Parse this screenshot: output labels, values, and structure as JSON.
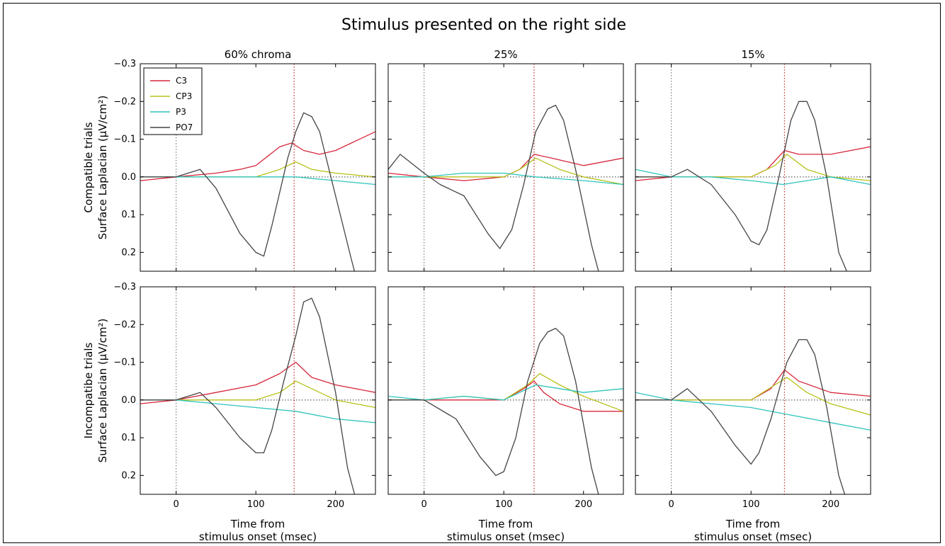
{
  "figure": {
    "title": "Stimulus presented on the right side",
    "column_titles": [
      "60% chroma",
      "25%",
      "15%"
    ],
    "row_ylabels": [
      [
        "Compatible trials",
        "Surface Laplacian (μV/cm²)"
      ],
      [
        "Incompatibe trials",
        "Surface Laplacian (μV/cm²)"
      ]
    ],
    "xlabel": [
      "Time from",
      "stimulus onset (msec)"
    ]
  },
  "chart_data": {
    "type": "line",
    "layout": "2 rows x 3 columns small multiples",
    "x_range": [
      -45,
      250
    ],
    "x_ticks": [
      0,
      100,
      200
    ],
    "y_range": [
      0.25,
      -0.3
    ],
    "y_inverted": true,
    "y_ticks": [
      -0.3,
      -0.2,
      -0.1,
      0.0,
      0.1,
      0.2
    ],
    "y_tick_labels": [
      "−0.3",
      "−0.2",
      "−0.1",
      "0.0",
      "0.1",
      "0.2"
    ],
    "legend": {
      "placement": "upper-left of first panel",
      "entries": [
        "C3",
        "CP3",
        "P3",
        "PO7"
      ]
    },
    "colors": {
      "C3": "#d6283c",
      "CP3": "#b8c21a",
      "P3": "#2ec4bc",
      "PO7": "#444444",
      "onset_line": "#666666",
      "peak_line": "#c0392b"
    },
    "panels": [
      {
        "row": "Compatible trials",
        "column": "60% chroma",
        "peak_line_x": 148,
        "series": [
          {
            "name": "C3",
            "x": [
              -45,
              0,
              50,
              80,
              100,
              130,
              145,
              160,
              180,
              200,
              220,
              250
            ],
            "y": [
              0.01,
              0.0,
              -0.01,
              -0.02,
              -0.03,
              -0.08,
              -0.09,
              -0.07,
              -0.06,
              -0.07,
              -0.09,
              -0.12
            ]
          },
          {
            "name": "CP3",
            "x": [
              -45,
              0,
              50,
              100,
              130,
              150,
              170,
              200,
              250
            ],
            "y": [
              0.0,
              0.0,
              0.0,
              0.0,
              -0.02,
              -0.04,
              -0.02,
              -0.01,
              0.0
            ]
          },
          {
            "name": "P3",
            "x": [
              -45,
              0,
              50,
              100,
              150,
              200,
              250
            ],
            "y": [
              0.0,
              0.0,
              0.0,
              0.0,
              0.0,
              0.01,
              0.02
            ]
          },
          {
            "name": "PO7",
            "x": [
              -45,
              0,
              30,
              50,
              80,
              100,
              110,
              120,
              140,
              150,
              160,
              170,
              180,
              200,
              220,
              230
            ],
            "y": [
              0.0,
              0.0,
              -0.02,
              0.03,
              0.15,
              0.2,
              0.21,
              0.13,
              -0.05,
              -0.12,
              -0.17,
              -0.16,
              -0.12,
              0.05,
              0.22,
              0.3
            ]
          }
        ]
      },
      {
        "row": "Compatible trials",
        "column": "25%",
        "peak_line_x": 138,
        "series": [
          {
            "name": "C3",
            "x": [
              -45,
              0,
              50,
              100,
              120,
              138,
              160,
              200,
              250
            ],
            "y": [
              -0.01,
              0.0,
              0.01,
              0.0,
              -0.02,
              -0.06,
              -0.05,
              -0.03,
              -0.05
            ]
          },
          {
            "name": "CP3",
            "x": [
              -45,
              0,
              50,
              100,
              120,
              140,
              170,
              200,
              250
            ],
            "y": [
              0.0,
              0.0,
              0.0,
              0.0,
              -0.02,
              -0.05,
              -0.02,
              0.0,
              0.02
            ]
          },
          {
            "name": "P3",
            "x": [
              -45,
              0,
              50,
              100,
              140,
              200,
              250
            ],
            "y": [
              0.0,
              0.0,
              -0.01,
              -0.01,
              0.0,
              0.01,
              0.02
            ]
          },
          {
            "name": "PO7",
            "x": [
              -45,
              -30,
              0,
              20,
              50,
              80,
              95,
              110,
              125,
              140,
              155,
              165,
              175,
              190,
              210,
              225
            ],
            "y": [
              -0.02,
              -0.06,
              -0.01,
              0.02,
              0.05,
              0.15,
              0.19,
              0.14,
              0.02,
              -0.12,
              -0.18,
              -0.19,
              -0.15,
              -0.02,
              0.18,
              0.3
            ]
          }
        ]
      },
      {
        "row": "Compatible trials",
        "column": "15%",
        "peak_line_x": 142,
        "series": [
          {
            "name": "C3",
            "x": [
              -45,
              0,
              50,
              100,
              120,
              142,
              160,
              200,
              250
            ],
            "y": [
              0.01,
              0.0,
              0.0,
              0.0,
              -0.02,
              -0.07,
              -0.06,
              -0.06,
              -0.08
            ]
          },
          {
            "name": "CP3",
            "x": [
              -45,
              0,
              50,
              100,
              130,
              145,
              170,
              200,
              250
            ],
            "y": [
              0.0,
              0.0,
              0.0,
              0.0,
              -0.03,
              -0.06,
              -0.02,
              0.0,
              0.01
            ]
          },
          {
            "name": "P3",
            "x": [
              -45,
              0,
              50,
              100,
              140,
              200,
              250
            ],
            "y": [
              -0.02,
              0.0,
              0.0,
              0.01,
              0.02,
              0.0,
              0.02
            ]
          },
          {
            "name": "PO7",
            "x": [
              -45,
              0,
              20,
              50,
              80,
              100,
              110,
              120,
              135,
              150,
              160,
              170,
              180,
              195,
              210,
              230
            ],
            "y": [
              0.0,
              0.0,
              -0.02,
              0.02,
              0.1,
              0.17,
              0.18,
              0.14,
              0.0,
              -0.15,
              -0.2,
              -0.2,
              -0.15,
              0.0,
              0.2,
              0.3
            ]
          }
        ]
      },
      {
        "row": "Incompatibe trials",
        "column": "60% chroma",
        "peak_line_x": 148,
        "series": [
          {
            "name": "C3",
            "x": [
              -45,
              0,
              50,
              100,
              130,
              150,
              170,
              200,
              250
            ],
            "y": [
              0.01,
              0.0,
              -0.02,
              -0.04,
              -0.07,
              -0.1,
              -0.06,
              -0.04,
              -0.02
            ]
          },
          {
            "name": "CP3",
            "x": [
              -45,
              0,
              50,
              100,
              130,
              150,
              170,
              200,
              250
            ],
            "y": [
              0.0,
              0.0,
              0.0,
              0.0,
              -0.02,
              -0.05,
              -0.03,
              0.0,
              0.02
            ]
          },
          {
            "name": "P3",
            "x": [
              -45,
              0,
              50,
              100,
              150,
              200,
              250
            ],
            "y": [
              0.0,
              0.0,
              0.01,
              0.02,
              0.03,
              0.05,
              0.06
            ]
          },
          {
            "name": "PO7",
            "x": [
              -45,
              0,
              30,
              50,
              80,
              100,
              110,
              120,
              135,
              150,
              160,
              170,
              180,
              200,
              215,
              230
            ],
            "y": [
              0.0,
              0.0,
              -0.02,
              0.02,
              0.1,
              0.14,
              0.14,
              0.08,
              -0.05,
              -0.17,
              -0.26,
              -0.27,
              -0.22,
              -0.02,
              0.18,
              0.3
            ]
          }
        ]
      },
      {
        "row": "Incompatibe trials",
        "column": "25%",
        "peak_line_x": 138,
        "series": [
          {
            "name": "C3",
            "x": [
              -45,
              0,
              50,
              100,
              125,
              138,
              150,
              170,
              200,
              250
            ],
            "y": [
              0.0,
              0.0,
              0.0,
              0.0,
              -0.03,
              -0.05,
              -0.02,
              0.01,
              0.03,
              0.03
            ]
          },
          {
            "name": "CP3",
            "x": [
              -45,
              0,
              50,
              100,
              130,
              145,
              170,
              200,
              250
            ],
            "y": [
              0.0,
              0.0,
              -0.01,
              0.0,
              -0.04,
              -0.07,
              -0.04,
              -0.01,
              0.03
            ]
          },
          {
            "name": "P3",
            "x": [
              -45,
              0,
              50,
              100,
              140,
              170,
              200,
              250
            ],
            "y": [
              -0.01,
              0.0,
              -0.01,
              0.0,
              -0.04,
              -0.03,
              -0.02,
              -0.03
            ]
          },
          {
            "name": "PO7",
            "x": [
              -45,
              0,
              40,
              70,
              90,
              100,
              115,
              130,
              145,
              155,
              165,
              175,
              190,
              210,
              225
            ],
            "y": [
              0.0,
              0.0,
              0.05,
              0.15,
              0.2,
              0.19,
              0.1,
              -0.05,
              -0.15,
              -0.18,
              -0.19,
              -0.17,
              -0.05,
              0.18,
              0.3
            ]
          }
        ]
      },
      {
        "row": "Incompatibe trials",
        "column": "15%",
        "peak_line_x": 142,
        "series": [
          {
            "name": "C3",
            "x": [
              -45,
              0,
              50,
              100,
              125,
              142,
              160,
              200,
              250
            ],
            "y": [
              0.0,
              0.0,
              0.0,
              0.0,
              -0.03,
              -0.08,
              -0.05,
              -0.02,
              -0.01
            ]
          },
          {
            "name": "CP3",
            "x": [
              -45,
              0,
              50,
              100,
              130,
              145,
              170,
              200,
              250
            ],
            "y": [
              0.0,
              0.0,
              0.0,
              0.0,
              -0.04,
              -0.06,
              -0.02,
              0.01,
              0.04
            ]
          },
          {
            "name": "P3",
            "x": [
              -45,
              0,
              50,
              100,
              150,
              200,
              250
            ],
            "y": [
              -0.02,
              0.0,
              0.01,
              0.02,
              0.04,
              0.06,
              0.08
            ]
          },
          {
            "name": "PO7",
            "x": [
              -45,
              0,
              20,
              50,
              80,
              100,
              110,
              125,
              145,
              160,
              170,
              180,
              195,
              210,
              225
            ],
            "y": [
              0.0,
              0.0,
              -0.03,
              0.03,
              0.12,
              0.17,
              0.14,
              0.05,
              -0.1,
              -0.16,
              -0.16,
              -0.12,
              0.02,
              0.2,
              0.3
            ]
          }
        ]
      }
    ]
  }
}
